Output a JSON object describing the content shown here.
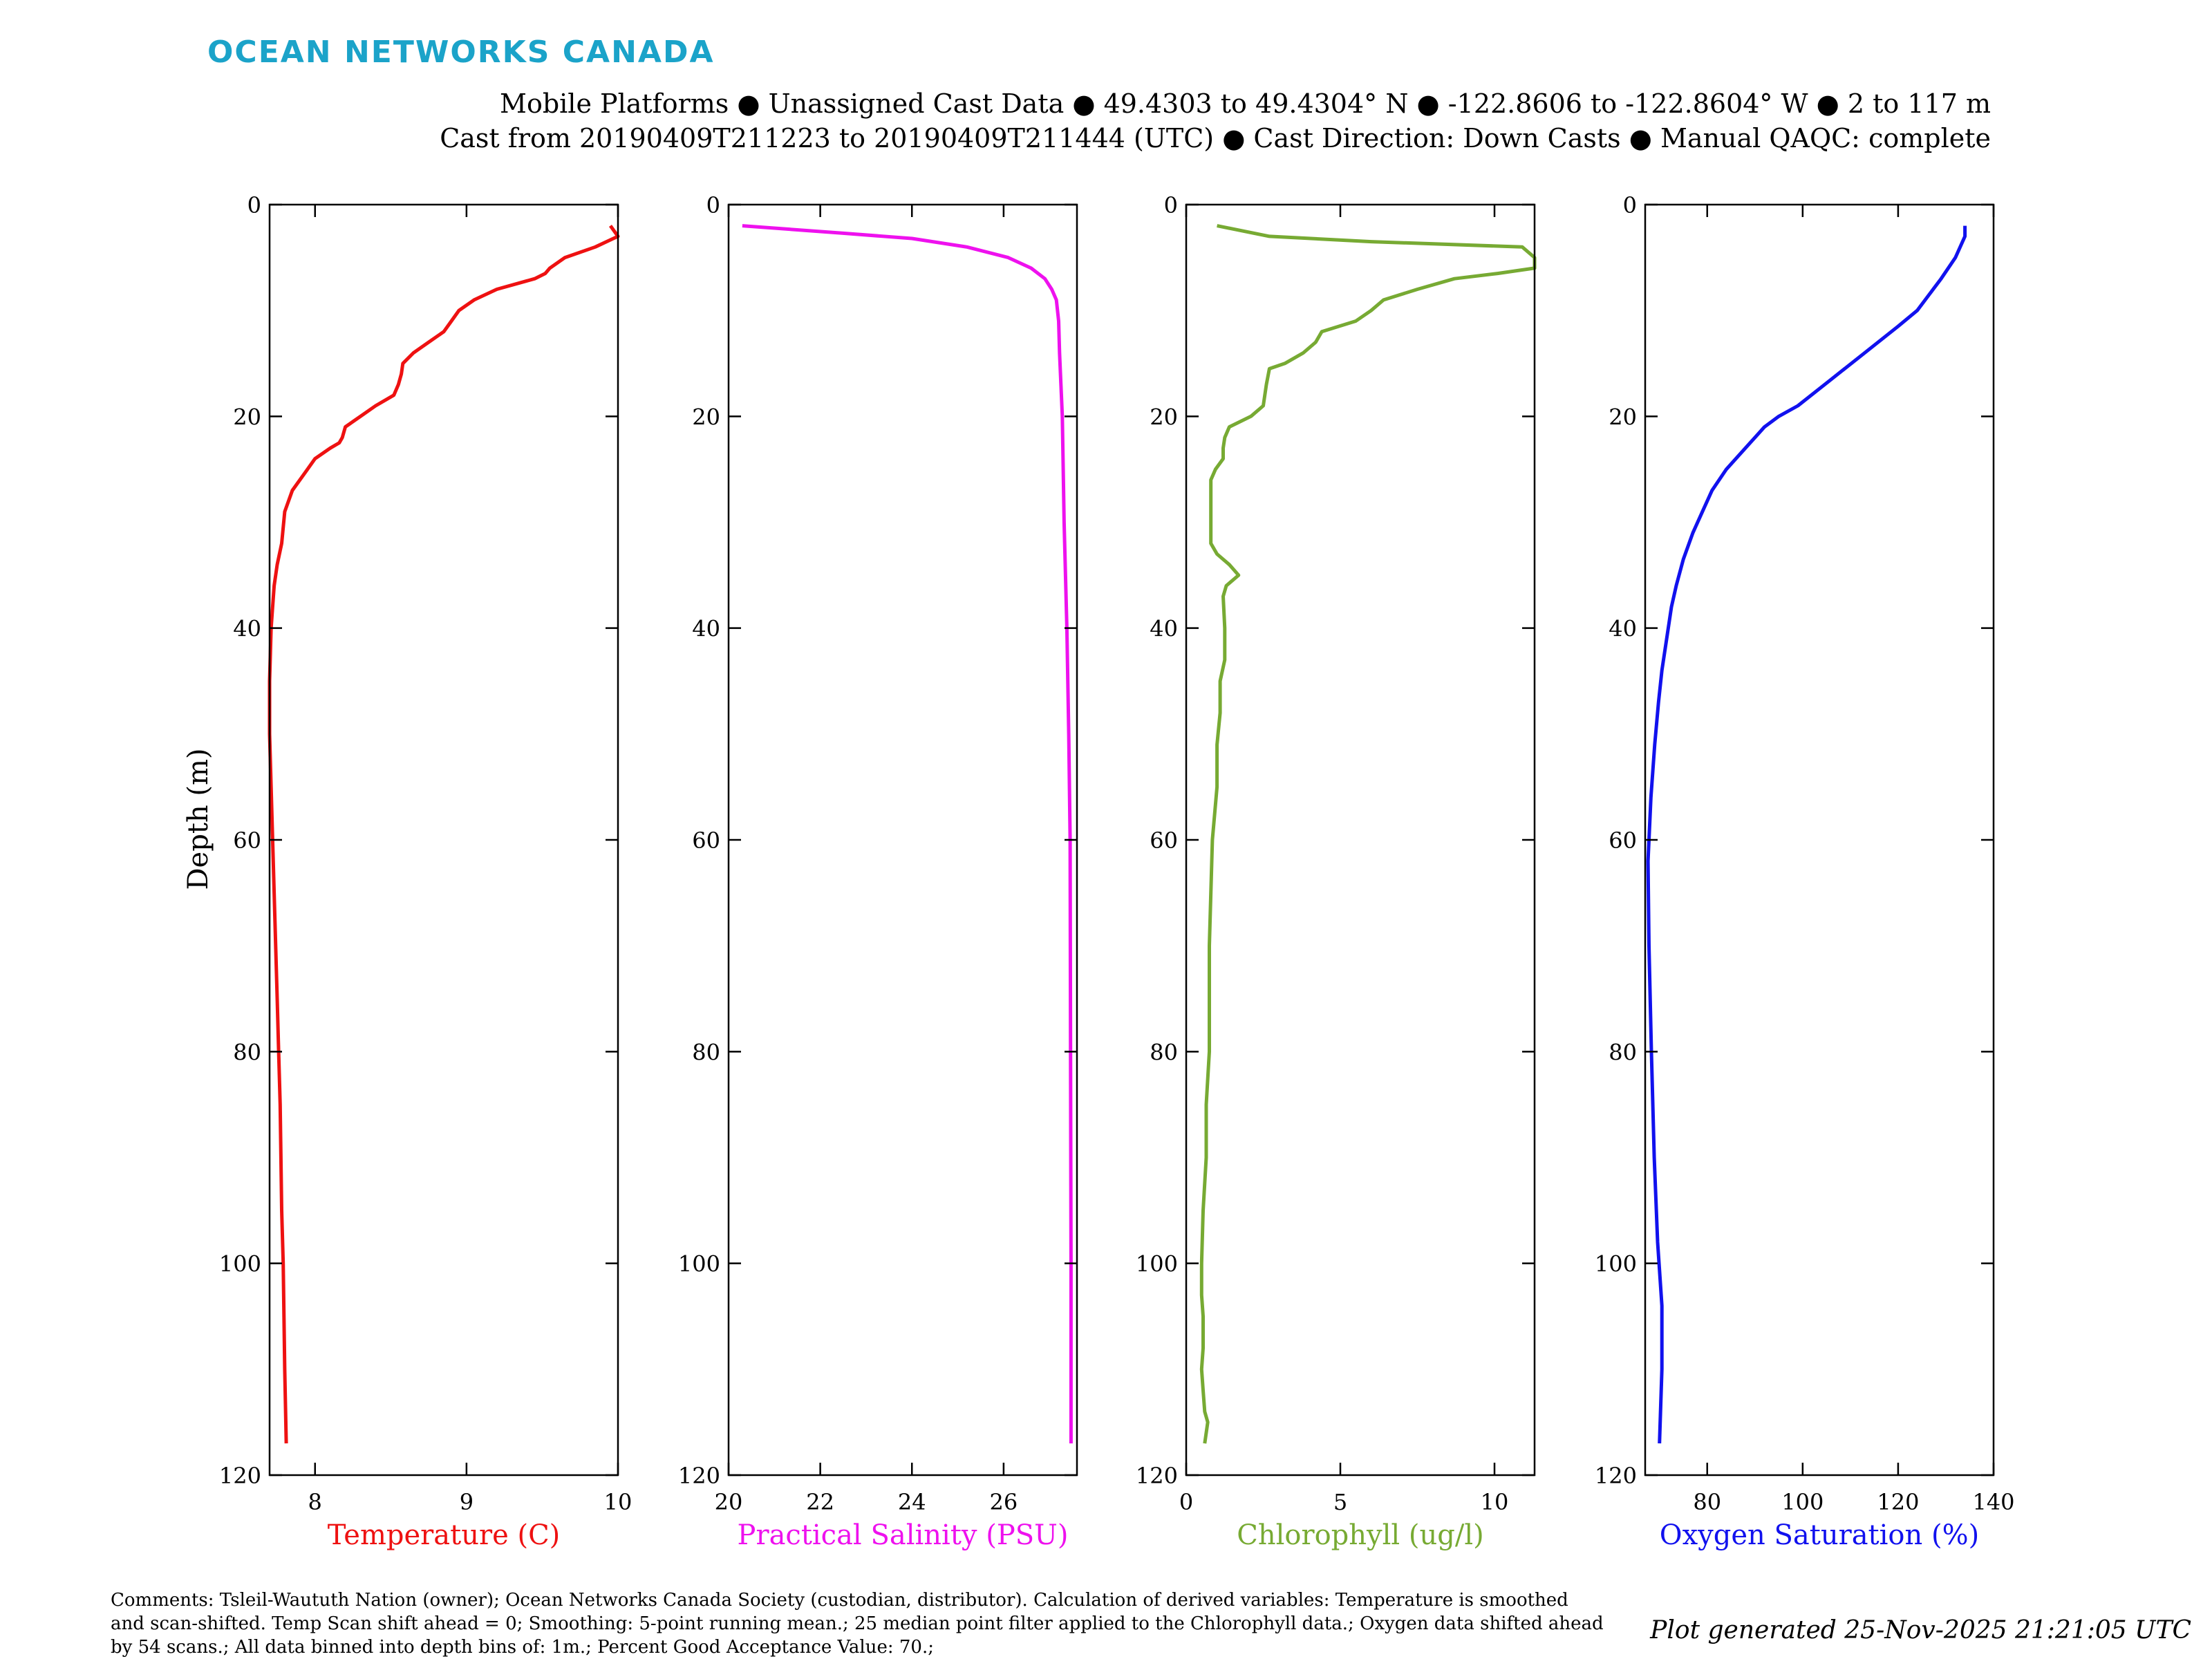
{
  "brand": "OCEAN NETWORKS CANADA",
  "header": {
    "line1": "Mobile Platforms ● Unassigned Cast Data ● 49.4303 to 49.4304° N ● -122.8606 to -122.8604° W ● 2 to 117 m",
    "line2": "Cast from 20190409T211223 to 20190409T211444 (UTC) ● Cast Direction: Down Casts ● Manual QAQC: complete"
  },
  "footer": {
    "comments": "Comments: Tsleil-Waututh Nation (owner); Ocean Networks Canada Society (custodian, distributor). Calculation of derived variables: Temperature is smoothed and scan-shifted. Temp Scan shift ahead = 0; Smoothing: 5-point running mean.; 25 median point filter applied to the Chlorophyll data.; Oxygen data shifted ahead by 54 scans.; All data binned into depth bins of: 1m.; Percent Good Acceptance Value: 70.;",
    "generated": "Plot generated 25-Nov-2025 21:21:05 UTC"
  },
  "chart_data": [
    {
      "type": "line",
      "xlabel": "Temperature (C)",
      "ylabel": "Depth (m)",
      "color": "#ee1111",
      "xlim": [
        7.7,
        10
      ],
      "xticks": [
        8,
        9,
        10
      ],
      "ylim": [
        0,
        120
      ],
      "yticks": [
        0,
        20,
        40,
        60,
        80,
        100,
        120
      ],
      "y_reversed": true,
      "series": [
        {
          "x": [
            9.95,
            10.0,
            9.85,
            9.65,
            9.55,
            9.52,
            9.45,
            9.2,
            9.05,
            8.95,
            8.9,
            8.85,
            8.75,
            8.65,
            8.58,
            8.57,
            8.55,
            8.52,
            8.4,
            8.3,
            8.2,
            8.18,
            8.16,
            8.1,
            8.0,
            7.95,
            7.85,
            7.8,
            7.78,
            7.75,
            7.73,
            7.72,
            7.71,
            7.7,
            7.7,
            7.71,
            7.72,
            7.73,
            7.74,
            7.75,
            7.76,
            7.77,
            7.78,
            7.79,
            7.8,
            7.81
          ],
          "y": [
            2,
            3,
            4,
            5,
            6,
            6.5,
            7,
            8,
            9,
            10,
            11,
            12,
            13,
            14,
            15,
            16,
            17,
            18,
            19,
            20,
            21,
            22,
            22.5,
            23,
            24,
            25,
            27,
            29,
            32,
            34,
            36,
            38,
            40,
            45,
            50,
            55,
            60,
            65,
            70,
            75,
            80,
            85,
            95,
            100,
            110,
            117
          ]
        }
      ]
    },
    {
      "type": "line",
      "xlabel": "Practical Salinity (PSU)",
      "color": "#ee11ee",
      "xlim": [
        20,
        27.6
      ],
      "xticks": [
        20,
        22,
        24,
        26
      ],
      "ylim": [
        0,
        120
      ],
      "yticks": [
        0,
        20,
        40,
        60,
        80,
        100,
        120
      ],
      "y_reversed": true,
      "series": [
        {
          "x": [
            20.3,
            22.5,
            24.0,
            25.2,
            26.1,
            26.6,
            26.9,
            27.05,
            27.15,
            27.2,
            27.22,
            27.25,
            27.28,
            27.32,
            27.38,
            27.42,
            27.45,
            27.46,
            27.47,
            27.47
          ],
          "y": [
            2,
            2.7,
            3.2,
            4,
            5,
            6,
            7,
            8,
            9,
            11,
            14,
            17,
            20,
            30,
            40,
            50,
            60,
            80,
            100,
            117
          ]
        }
      ]
    },
    {
      "type": "line",
      "xlabel": "Chlorophyll (ug/l)",
      "color": "#77aa33",
      "xlim": [
        0,
        11.3
      ],
      "xticks": [
        0,
        5,
        10
      ],
      "ylim": [
        0,
        120
      ],
      "yticks": [
        0,
        20,
        40,
        60,
        80,
        100,
        120
      ],
      "y_reversed": true,
      "series": [
        {
          "x": [
            1.0,
            2.7,
            6.0,
            10.9,
            11.3,
            11.3,
            10.1,
            8.7,
            7.5,
            6.4,
            6.0,
            5.5,
            4.4,
            4.2,
            3.8,
            3.2,
            2.7,
            2.6,
            2.5,
            2.1,
            1.4,
            1.25,
            1.2,
            1.2,
            0.95,
            0.8,
            0.8,
            0.8,
            1.0,
            1.4,
            1.7,
            1.3,
            1.2,
            1.25,
            1.25,
            1.1,
            1.1,
            1.0,
            1.0,
            0.85,
            0.75,
            0.75,
            0.65,
            0.65,
            0.55,
            0.5,
            0.5,
            0.55,
            0.55,
            0.5,
            0.55,
            0.6,
            0.7,
            0.6
          ],
          "y": [
            2,
            3,
            3.5,
            4,
            5,
            6,
            6.5,
            7,
            8,
            9,
            10,
            11,
            12,
            13,
            14,
            15,
            15.5,
            17,
            19,
            20,
            21,
            22,
            23,
            24,
            25,
            26,
            28,
            32,
            33,
            34,
            35,
            36,
            37,
            40,
            43,
            45,
            48,
            51,
            55,
            60,
            70,
            80,
            85,
            90,
            95,
            100,
            103,
            105,
            108,
            110,
            112,
            114,
            115,
            117
          ]
        }
      ]
    },
    {
      "type": "line",
      "xlabel": "Oxygen Saturation (%)",
      "color": "#1111ee",
      "xlim": [
        67,
        140
      ],
      "xticks": [
        80,
        100,
        120,
        140
      ],
      "ylim": [
        0,
        120
      ],
      "yticks": [
        0,
        20,
        40,
        60,
        80,
        100,
        120
      ],
      "y_reversed": true,
      "series": [
        {
          "x": [
            134,
            134,
            132,
            129,
            124,
            120,
            113,
            106,
            99,
            95,
            92,
            89,
            86,
            84,
            81,
            79,
            77,
            75,
            73.5,
            72.5,
            71.5,
            70.5,
            69.8,
            69,
            68.2,
            67.6,
            67.8,
            68.3,
            68.9,
            69.6,
            70.5,
            70.5,
            70
          ],
          "y": [
            2,
            3,
            5,
            7,
            10,
            11.5,
            14,
            16.5,
            19,
            20,
            21,
            22.5,
            24,
            25,
            27,
            29,
            31,
            33.5,
            36,
            38,
            41,
            44,
            47,
            51,
            56,
            62,
            70,
            80,
            90,
            98,
            104,
            110,
            117
          ]
        }
      ]
    }
  ]
}
